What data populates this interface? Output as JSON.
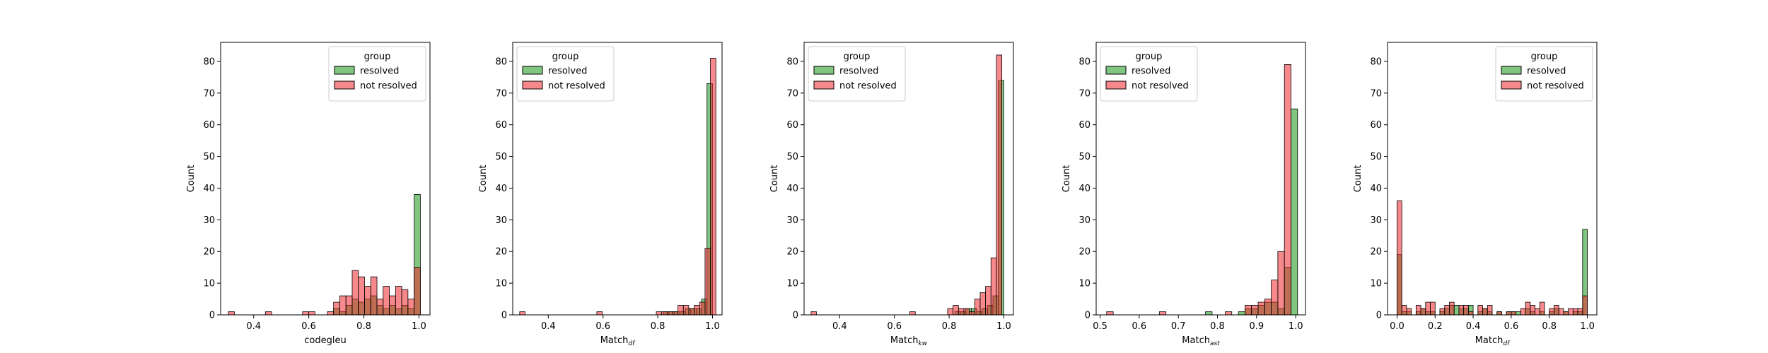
{
  "legend": {
    "title": "group",
    "items": [
      {
        "label": "resolved",
        "color": "#2ca02c"
      },
      {
        "label": "not resolved",
        "color": "#f0282d"
      }
    ]
  },
  "chart_data": [
    {
      "type": "histogram",
      "xlabel": "codegleu",
      "ylabel": "Count",
      "xlim": [
        0.28,
        1.04
      ],
      "ylim": [
        0,
        86
      ],
      "xticks": [
        0.4,
        0.6,
        0.8,
        1.0
      ],
      "xtick_labels": [
        "0.4",
        "0.6",
        "0.8",
        "1.0"
      ],
      "yticks": [
        0,
        10,
        20,
        30,
        40,
        50,
        60,
        70,
        80
      ],
      "legend_position": "upper right",
      "bin_width": 0.0225,
      "series": [
        {
          "name": "resolved",
          "bins": [
            [
              0.69,
              2
            ],
            [
              0.7125,
              1
            ],
            [
              0.735,
              3
            ],
            [
              0.7575,
              5
            ],
            [
              0.78,
              4
            ],
            [
              0.8025,
              5
            ],
            [
              0.825,
              6
            ],
            [
              0.8475,
              3
            ],
            [
              0.87,
              2
            ],
            [
              0.8925,
              3
            ],
            [
              0.915,
              2
            ],
            [
              0.9375,
              3
            ],
            [
              0.96,
              2
            ],
            [
              0.9825,
              38
            ]
          ]
        },
        {
          "name": "not resolved",
          "bins": [
            [
              0.3075,
              1
            ],
            [
              0.4425,
              1
            ],
            [
              0.5775,
              1
            ],
            [
              0.6,
              1
            ],
            [
              0.6675,
              1
            ],
            [
              0.69,
              4
            ],
            [
              0.7125,
              6
            ],
            [
              0.735,
              6
            ],
            [
              0.7575,
              14
            ],
            [
              0.78,
              12
            ],
            [
              0.8025,
              9
            ],
            [
              0.825,
              12
            ],
            [
              0.8475,
              5
            ],
            [
              0.87,
              9
            ],
            [
              0.8925,
              6
            ],
            [
              0.915,
              9
            ],
            [
              0.9375,
              8
            ],
            [
              0.96,
              5
            ],
            [
              0.9825,
              15
            ]
          ]
        }
      ]
    },
    {
      "type": "histogram",
      "xlabel": "Match",
      "xlabel_sub": "df",
      "ylabel": "Count",
      "xlim": [
        0.27,
        1.035
      ],
      "ylim": [
        0,
        86
      ],
      "xticks": [
        0.4,
        0.6,
        0.8,
        1.0
      ],
      "xtick_labels": [
        "0.4",
        "0.6",
        "0.8",
        "1.0"
      ],
      "yticks": [
        0,
        10,
        20,
        30,
        40,
        50,
        60,
        70,
        80
      ],
      "legend_position": "upper left",
      "bin_width": 0.0198,
      "series": [
        {
          "name": "resolved",
          "bins": [
            [
              0.8216,
              1
            ],
            [
              0.8414,
              1
            ],
            [
              0.8612,
              1
            ],
            [
              0.881,
              1
            ],
            [
              0.9008,
              2
            ],
            [
              0.9206,
              2
            ],
            [
              0.9404,
              2
            ],
            [
              0.9602,
              5
            ],
            [
              0.98,
              73
            ]
          ]
        },
        {
          "name": "not resolved",
          "bins": [
            [
              0.2954,
              1
            ],
            [
              0.5774,
              1
            ],
            [
              0.7946,
              1
            ],
            [
              0.8144,
              1
            ],
            [
              0.8342,
              1
            ],
            [
              0.854,
              1
            ],
            [
              0.8738,
              3
            ],
            [
              0.8936,
              3
            ],
            [
              0.9134,
              2
            ],
            [
              0.9332,
              3
            ],
            [
              0.953,
              4
            ],
            [
              0.9728,
              21
            ],
            [
              0.9926,
              81
            ]
          ]
        }
      ]
    },
    {
      "type": "histogram",
      "xlabel": "Match",
      "xlabel_sub": "kw",
      "ylabel": "Count",
      "xlim": [
        0.27,
        1.035
      ],
      "ylim": [
        0,
        86
      ],
      "xticks": [
        0.4,
        0.6,
        0.8,
        1.0
      ],
      "xtick_labels": [
        "0.4",
        "0.6",
        "0.8",
        "1.0"
      ],
      "yticks": [
        0,
        10,
        20,
        30,
        40,
        50,
        60,
        70,
        80
      ],
      "legend_position": "upper left",
      "bin_width": 0.0198,
      "series": [
        {
          "name": "resolved",
          "bins": [
            [
              0.8216,
              1
            ],
            [
              0.8414,
              1
            ],
            [
              0.8612,
              2
            ],
            [
              0.881,
              2
            ],
            [
              0.9008,
              1
            ],
            [
              0.9206,
              2
            ],
            [
              0.9404,
              3
            ],
            [
              0.9602,
              6
            ],
            [
              0.98,
              74
            ]
          ]
        },
        {
          "name": "not resolved",
          "bins": [
            [
              0.2954,
              1
            ],
            [
              0.6566,
              1
            ],
            [
              0.7946,
              2
            ],
            [
              0.8144,
              3
            ],
            [
              0.8342,
              2
            ],
            [
              0.854,
              2
            ],
            [
              0.8738,
              1
            ],
            [
              0.8936,
              5
            ],
            [
              0.9134,
              7
            ],
            [
              0.9332,
              9
            ],
            [
              0.953,
              18
            ],
            [
              0.9728,
              82
            ]
          ]
        }
      ]
    },
    {
      "type": "histogram",
      "xlabel": "Match",
      "xlabel_sub": "ast",
      "ylabel": "Count",
      "xlim": [
        0.49,
        1.025
      ],
      "ylim": [
        0,
        86
      ],
      "xticks": [
        0.5,
        0.6,
        0.7,
        0.8,
        0.9,
        1.0
      ],
      "xtick_labels": [
        "0.5",
        "0.6",
        "0.7",
        "0.8",
        "0.9",
        "1.0"
      ],
      "yticks": [
        0,
        10,
        20,
        30,
        40,
        50,
        60,
        70,
        80
      ],
      "legend_position": "upper left",
      "bin_width": 0.0168,
      "series": [
        {
          "name": "resolved",
          "bins": [
            [
              0.7694,
              1
            ],
            [
              0.8535,
              1
            ],
            [
              0.8703,
              2
            ],
            [
              0.8871,
              2
            ],
            [
              0.9039,
              3
            ],
            [
              0.9207,
              4
            ],
            [
              0.9375,
              4
            ],
            [
              0.9543,
              2
            ],
            [
              0.9711,
              15
            ],
            [
              0.9879,
              65
            ]
          ]
        },
        {
          "name": "not resolved",
          "bins": [
            [
              0.5168,
              1
            ],
            [
              0.6515,
              1
            ],
            [
              0.8198,
              1
            ],
            [
              0.8703,
              3
            ],
            [
              0.8871,
              3
            ],
            [
              0.9039,
              4
            ],
            [
              0.9207,
              5
            ],
            [
              0.9375,
              11
            ],
            [
              0.9543,
              20
            ],
            [
              0.9711,
              79
            ]
          ]
        }
      ]
    },
    {
      "type": "histogram",
      "xlabel": "Match",
      "xlabel_sub": "df",
      "ylabel": "Count",
      "xlim": [
        -0.05,
        1.05
      ],
      "ylim": [
        0,
        86
      ],
      "xticks": [
        0.0,
        0.2,
        0.4,
        0.6,
        0.8,
        1.0
      ],
      "xtick_labels": [
        "0.0",
        "0.2",
        "0.4",
        "0.6",
        "0.8",
        "1.0"
      ],
      "yticks": [
        0,
        10,
        20,
        30,
        40,
        50,
        60,
        70,
        80
      ],
      "legend_position": "upper right",
      "bin_width": 0.025,
      "series": [
        {
          "name": "resolved",
          "bins": [
            [
              0.0,
              19
            ],
            [
              0.025,
              1
            ],
            [
              0.05,
              1
            ],
            [
              0.1,
              1
            ],
            [
              0.125,
              2
            ],
            [
              0.15,
              1
            ],
            [
              0.175,
              1
            ],
            [
              0.225,
              1
            ],
            [
              0.25,
              2
            ],
            [
              0.275,
              3
            ],
            [
              0.3,
              3
            ],
            [
              0.325,
              2
            ],
            [
              0.35,
              2
            ],
            [
              0.375,
              3
            ],
            [
              0.425,
              1
            ],
            [
              0.45,
              2
            ],
            [
              0.475,
              1
            ],
            [
              0.525,
              1
            ],
            [
              0.575,
              1
            ],
            [
              0.6,
              1
            ],
            [
              0.625,
              1
            ],
            [
              0.675,
              2
            ],
            [
              0.7,
              1
            ],
            [
              0.75,
              1
            ],
            [
              0.8,
              1
            ],
            [
              0.825,
              2
            ],
            [
              0.875,
              1
            ],
            [
              0.925,
              1
            ],
            [
              0.95,
              1
            ],
            [
              0.975,
              27
            ]
          ]
        },
        {
          "name": "not resolved",
          "bins": [
            [
              0.0,
              36
            ],
            [
              0.025,
              3
            ],
            [
              0.05,
              2
            ],
            [
              0.1,
              3
            ],
            [
              0.125,
              2
            ],
            [
              0.15,
              4
            ],
            [
              0.175,
              4
            ],
            [
              0.225,
              2
            ],
            [
              0.25,
              3
            ],
            [
              0.275,
              4
            ],
            [
              0.325,
              3
            ],
            [
              0.35,
              3
            ],
            [
              0.375,
              1
            ],
            [
              0.425,
              3
            ],
            [
              0.45,
              2
            ],
            [
              0.475,
              3
            ],
            [
              0.525,
              1
            ],
            [
              0.575,
              1
            ],
            [
              0.6,
              1
            ],
            [
              0.65,
              2
            ],
            [
              0.675,
              4
            ],
            [
              0.7,
              3
            ],
            [
              0.725,
              2
            ],
            [
              0.75,
              4
            ],
            [
              0.8,
              2
            ],
            [
              0.825,
              3
            ],
            [
              0.85,
              2
            ],
            [
              0.875,
              1
            ],
            [
              0.9,
              2
            ],
            [
              0.925,
              2
            ],
            [
              0.95,
              2
            ],
            [
              0.975,
              6
            ]
          ]
        }
      ]
    }
  ]
}
